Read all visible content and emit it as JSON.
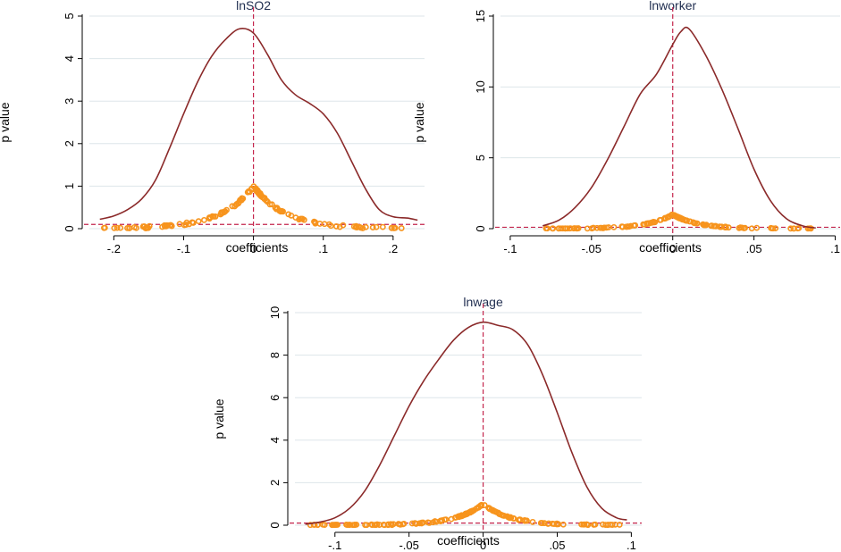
{
  "colors": {
    "density": "#8b2a2a",
    "pvalue": "#f7941d",
    "refline": "#c4254c",
    "grid": "#dde6ea",
    "axis": "#000000",
    "title": "#1f2d4f"
  },
  "chart_data": [
    {
      "type": "line",
      "title": "lnSO2",
      "xlabel": "coefficients",
      "ylabel": "p value",
      "xlim": [
        -0.235,
        0.245
      ],
      "ylim": [
        0,
        5
      ],
      "xticks": [
        -0.2,
        -0.1,
        0,
        0.1,
        0.2
      ],
      "xtick_labels": [
        "-.2",
        "-.1",
        "0",
        ".1",
        ".2"
      ],
      "yticks": [
        0,
        1,
        2,
        3,
        4,
        5
      ],
      "ytick_labels": [
        "0",
        "1",
        "2",
        "3",
        "4",
        "5"
      ],
      "ref_x": 0,
      "ref_y": 0.1,
      "series": [
        {
          "name": "kernel density",
          "x": [
            -0.22,
            -0.2,
            -0.18,
            -0.16,
            -0.14,
            -0.12,
            -0.1,
            -0.08,
            -0.06,
            -0.04,
            -0.02,
            0,
            0.02,
            0.04,
            0.06,
            0.08,
            0.1,
            0.12,
            0.14,
            0.16,
            0.18,
            0.2,
            0.22,
            0.235
          ],
          "values": [
            0.22,
            0.3,
            0.45,
            0.7,
            1.15,
            1.9,
            2.7,
            3.45,
            4.05,
            4.45,
            4.7,
            4.6,
            4.1,
            3.5,
            3.15,
            2.95,
            2.7,
            2.25,
            1.6,
            0.95,
            0.45,
            0.28,
            0.25,
            0.2
          ]
        },
        {
          "name": "p value",
          "peak": 1,
          "spread": 0.045,
          "range": [
            -0.22,
            0.235
          ],
          "n": 160
        }
      ]
    },
    {
      "type": "line",
      "title": "lnworker",
      "xlabel": "coefficients",
      "ylabel": "p value",
      "xlim": [
        -0.106,
        0.103
      ],
      "ylim": [
        0,
        15
      ],
      "xticks": [
        -0.1,
        -0.05,
        0,
        0.05,
        0.1
      ],
      "xtick_labels": [
        "-.1",
        "-.05",
        "0",
        ".05",
        ".1"
      ],
      "yticks": [
        0,
        5,
        10,
        15
      ],
      "ytick_labels": [
        "0",
        "5",
        "10",
        "15"
      ],
      "ref_x": 0,
      "ref_y": 0.1,
      "series": [
        {
          "name": "kernel density",
          "x": [
            -0.08,
            -0.07,
            -0.06,
            -0.05,
            -0.04,
            -0.03,
            -0.02,
            -0.01,
            0,
            0.005,
            0.01,
            0.02,
            0.03,
            0.04,
            0.05,
            0.06,
            0.07,
            0.08,
            0.088
          ],
          "values": [
            0.2,
            0.6,
            1.5,
            2.9,
            4.9,
            7.2,
            9.5,
            10.9,
            13,
            13.9,
            14.1,
            12.3,
            9.9,
            7.1,
            4.2,
            2.0,
            0.7,
            0.2,
            0.05
          ]
        },
        {
          "name": "p value",
          "peak": 1,
          "spread": 0.015,
          "range": [
            -0.08,
            0.088
          ],
          "n": 160
        }
      ]
    },
    {
      "type": "line",
      "title": "lnwage",
      "xlabel": "coefficients",
      "ylabel": "p value",
      "xlim": [
        -0.127,
        0.107
      ],
      "ylim": [
        0,
        10
      ],
      "xticks": [
        -0.1,
        -0.05,
        0,
        0.05,
        0.1
      ],
      "xtick_labels": [
        "-.1",
        "-.05",
        "0",
        ".05",
        ".1"
      ],
      "yticks": [
        0,
        2,
        4,
        6,
        8,
        10
      ],
      "ytick_labels": [
        "0",
        "2",
        "4",
        "6",
        "8",
        "10"
      ],
      "ref_x": 0,
      "ref_y": 0.1,
      "series": [
        {
          "name": "kernel density",
          "x": [
            -0.12,
            -0.11,
            -0.1,
            -0.09,
            -0.08,
            -0.07,
            -0.06,
            -0.05,
            -0.04,
            -0.03,
            -0.02,
            -0.01,
            0,
            0.01,
            0.02,
            0.03,
            0.04,
            0.05,
            0.06,
            0.07,
            0.08,
            0.09,
            0.097
          ],
          "values": [
            0.05,
            0.15,
            0.35,
            0.8,
            1.6,
            2.8,
            4.2,
            5.6,
            6.8,
            7.8,
            8.7,
            9.3,
            9.55,
            9.4,
            9.2,
            8.5,
            7.1,
            5.3,
            3.4,
            1.8,
            0.8,
            0.35,
            0.25
          ]
        },
        {
          "name": "p value",
          "peak": 1,
          "spread": 0.018,
          "range": [
            -0.12,
            0.097
          ],
          "n": 170
        }
      ]
    }
  ]
}
